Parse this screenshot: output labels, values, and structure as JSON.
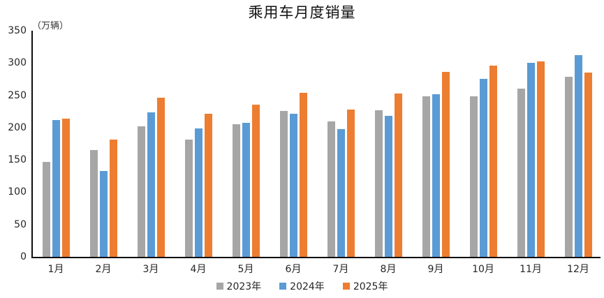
{
  "page": {
    "background": "#ffffff",
    "text_color": "#262626",
    "axis_color": "#0d0d0d"
  },
  "chart_data": {
    "type": "bar",
    "title": "乘用车月度销量",
    "unit_label": "（万辆）",
    "xlabel": "",
    "ylabel": "万辆",
    "categories": [
      "1月",
      "2月",
      "3月",
      "4月",
      "5月",
      "6月",
      "7月",
      "8月",
      "9月",
      "10月",
      "11月",
      "12月"
    ],
    "series": [
      {
        "name": "2023年",
        "color": "#A6A6A6",
        "values": [
          147,
          165,
          202,
          181,
          205,
          226,
          210,
          227,
          248,
          249,
          260,
          279
        ]
      },
      {
        "name": "2024年",
        "color": "#5B9BD5",
        "values": [
          212,
          133,
          224,
          199,
          207,
          222,
          198,
          218,
          252,
          275,
          300,
          312
        ]
      },
      {
        "name": "2025年",
        "color": "#ED7D31",
        "values": [
          214,
          182,
          246,
          222,
          235,
          254,
          228,
          253,
          286,
          296,
          303,
          285
        ]
      }
    ],
    "ylim": [
      0,
      350
    ],
    "yticks": [
      350,
      300,
      250,
      200,
      150,
      100,
      50,
      0
    ],
    "grid": false,
    "legend_position": "bottom"
  }
}
